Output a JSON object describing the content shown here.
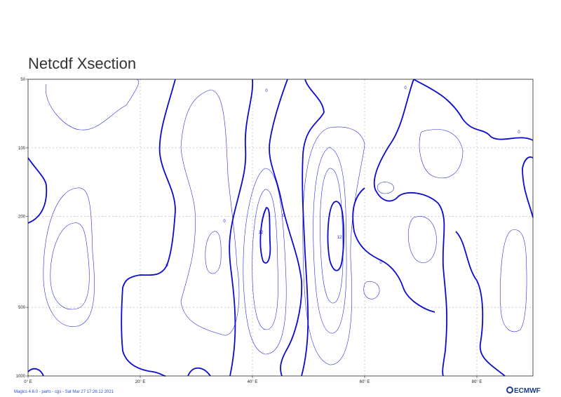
{
  "chart_data": {
    "type": "contour",
    "title": "Netcdf Xsection",
    "x_ticks": [
      "0° E",
      "20° E",
      "40° E",
      "60° E",
      "80° E"
    ],
    "x_tick_values": [
      0,
      20,
      40,
      60,
      80
    ],
    "xlim": [
      0,
      90
    ],
    "y_ticks": [
      "50",
      "100",
      "200",
      "500",
      "1000"
    ],
    "y_tick_values": [
      50,
      100,
      200,
      500,
      1000
    ],
    "ylim": [
      50,
      1000
    ],
    "y_scale": "log",
    "grid": true,
    "contour_color": "#1f1fbf",
    "contour_labels": [
      "0",
      "0",
      "0",
      "0",
      "0",
      "0",
      "0",
      "12",
      "12"
    ]
  },
  "footer": "Magics 4.6.0 - parts - cgs - Sat Mar 27 17:26:12 2021",
  "logo": "ECMWF"
}
